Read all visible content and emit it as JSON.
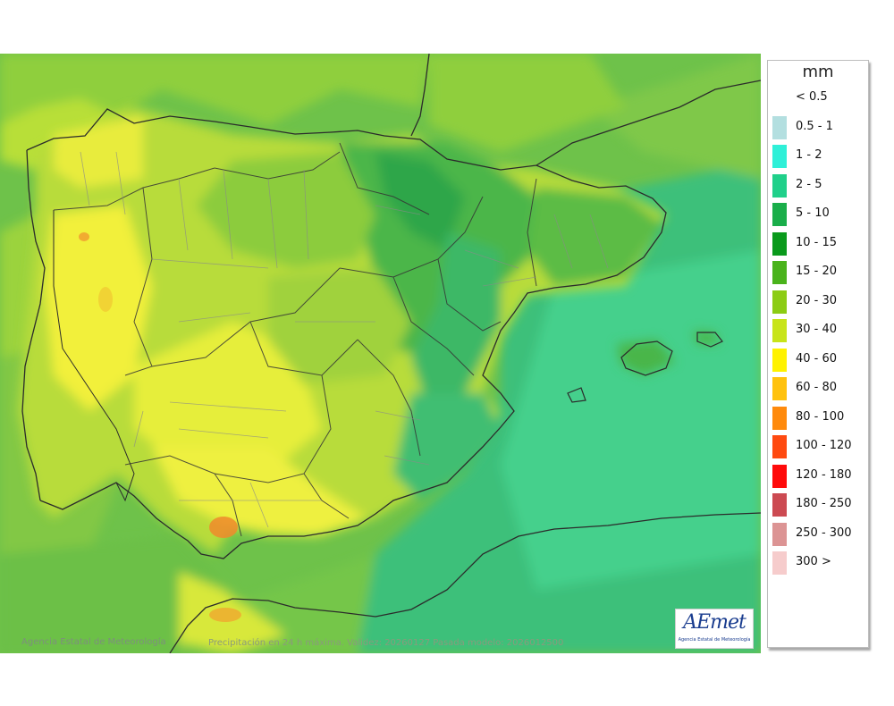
{
  "legend": {
    "unit": "mm",
    "items": [
      {
        "label": "< 0.5",
        "color": "#ffffff"
      },
      {
        "label": "0.5 - 1",
        "color": "#b3dfe0"
      },
      {
        "label": "1 - 2",
        "color": "#2ff0d8"
      },
      {
        "label": "2 - 5",
        "color": "#20d08a"
      },
      {
        "label": "5 - 10",
        "color": "#1aae4a"
      },
      {
        "label": "10 - 15",
        "color": "#0a9a1c"
      },
      {
        "label": "15 - 20",
        "color": "#4ab31c"
      },
      {
        "label": "20 - 30",
        "color": "#8ccc14"
      },
      {
        "label": "30 - 40",
        "color": "#c8e41a"
      },
      {
        "label": "40 - 60",
        "color": "#fff200"
      },
      {
        "label": "60 - 80",
        "color": "#ffc20e"
      },
      {
        "label": "80 - 100",
        "color": "#ff8a0c"
      },
      {
        "label": "100 - 120",
        "color": "#ff4a10"
      },
      {
        "label": "120 - 180",
        "color": "#ff0a0a"
      },
      {
        "label": "180 - 250",
        "color": "#cc4a52"
      },
      {
        "label": "250 - 300",
        "color": "#dc9494"
      },
      {
        "label": "300 >",
        "color": "#f6cccc"
      }
    ]
  },
  "footer": {
    "credit": "Agencia Estatal de Meteorología",
    "caption": "Precipitación en 24 h máxima. Validez: 20260127 Pasada modelo: 2026012500"
  },
  "logo": {
    "text": "AEmet",
    "subtitle": "Agencia Estatal de Meteorología"
  }
}
